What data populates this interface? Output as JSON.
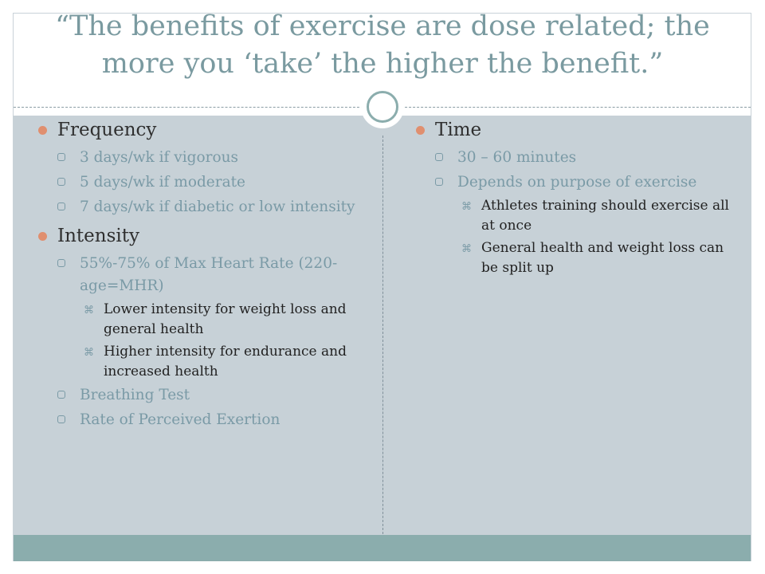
{
  "slide": {
    "title": "“The benefits of exercise are dose related; the more you ‘take’ the higher the benefit.”",
    "left_column": {
      "frequency": {
        "heading": "Frequency",
        "items": [
          "3 days/wk if vigorous",
          "5 days/wk if moderate",
          "7 days/wk if diabetic or low intensity"
        ]
      },
      "intensity": {
        "heading": "Intensity",
        "item_1": "55%-75% of Max Heart Rate (220-age=MHR)",
        "sub_items": [
          "Lower intensity for weight loss and general health",
          "Higher intensity for endurance and increased health"
        ],
        "item_2": "Breathing Test",
        "item_3": "Rate of Perceived Exertion"
      }
    },
    "right_column": {
      "time": {
        "heading": "Time",
        "item_1": "30 – 60 minutes",
        "item_2": "Depends on purpose of exercise",
        "sub_items": [
          "Athletes training should exercise all at once",
          "General health and weight loss can be split up"
        ]
      }
    },
    "bullets": {
      "level1": "filled-circle-bullet",
      "level2": "rounded-square-bullet",
      "level3": "cross-bullet"
    },
    "colors": {
      "title": "#7a9aa0",
      "panel": "#c7d1d7",
      "footer": "#8badad",
      "bullet_level1": "#e08f6f",
      "level2_text": "#7a9aa6",
      "body_text": "#222222"
    }
  }
}
